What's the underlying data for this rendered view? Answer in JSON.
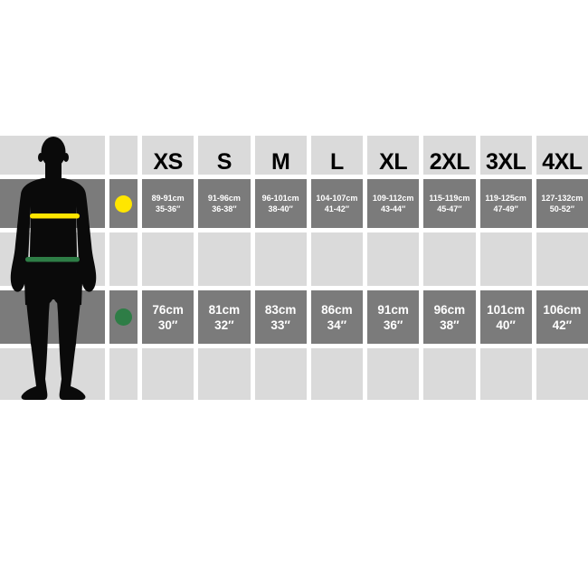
{
  "colors": {
    "background": "#ffffff",
    "band_light": "#dadada",
    "band_dark": "#7b7b7b",
    "silhouette": "#0a0a0a",
    "chest_marker": "#ffe600",
    "waist_marker": "#2e7d46",
    "header_text": "#000000",
    "cell_text": "#ffffff"
  },
  "table": {
    "headers": [
      "XS",
      "S",
      "M",
      "L",
      "XL",
      "2XL",
      "3XL",
      "4XL"
    ],
    "chest_row": {
      "marker_color": "#ffe600",
      "lines": [
        [
          "89-91cm",
          "35-36″"
        ],
        [
          "91-96cm",
          "36-38″"
        ],
        [
          "96-101cm",
          "38-40″"
        ],
        [
          "104-107cm",
          "41-42″"
        ],
        [
          "109-112cm",
          "43-44″"
        ],
        [
          "115-119cm",
          "45-47″"
        ],
        [
          "119-125cm",
          "47-49″"
        ],
        [
          "127-132cm",
          "50-52″"
        ]
      ]
    },
    "waist_row": {
      "marker_color": "#2e7d46",
      "lines": [
        [
          "76cm",
          "30″"
        ],
        [
          "81cm",
          "32″"
        ],
        [
          "83cm",
          "33″"
        ],
        [
          "86cm",
          "34″"
        ],
        [
          "91cm",
          "36″"
        ],
        [
          "96cm",
          "38″"
        ],
        [
          "101cm",
          "40″"
        ],
        [
          "106cm",
          "42″"
        ]
      ]
    }
  },
  "chart_data": {
    "type": "table",
    "columns": [
      "XS",
      "S",
      "M",
      "L",
      "XL",
      "2XL",
      "3XL",
      "4XL"
    ],
    "rows": [
      {
        "label": "Chest",
        "marker_color": "#ffe600",
        "cm": [
          "89-91",
          "91-96",
          "96-101",
          "104-107",
          "109-112",
          "115-119",
          "119-125",
          "127-132"
        ],
        "inches": [
          "35-36",
          "36-38",
          "38-40",
          "41-42",
          "43-44",
          "45-47",
          "47-49",
          "50-52"
        ]
      },
      {
        "label": "Waist",
        "marker_color": "#2e7d46",
        "cm": [
          "76",
          "81",
          "83",
          "86",
          "91",
          "96",
          "101",
          "106"
        ],
        "inches": [
          "30",
          "32",
          "33",
          "34",
          "36",
          "38",
          "40",
          "42"
        ]
      }
    ]
  }
}
